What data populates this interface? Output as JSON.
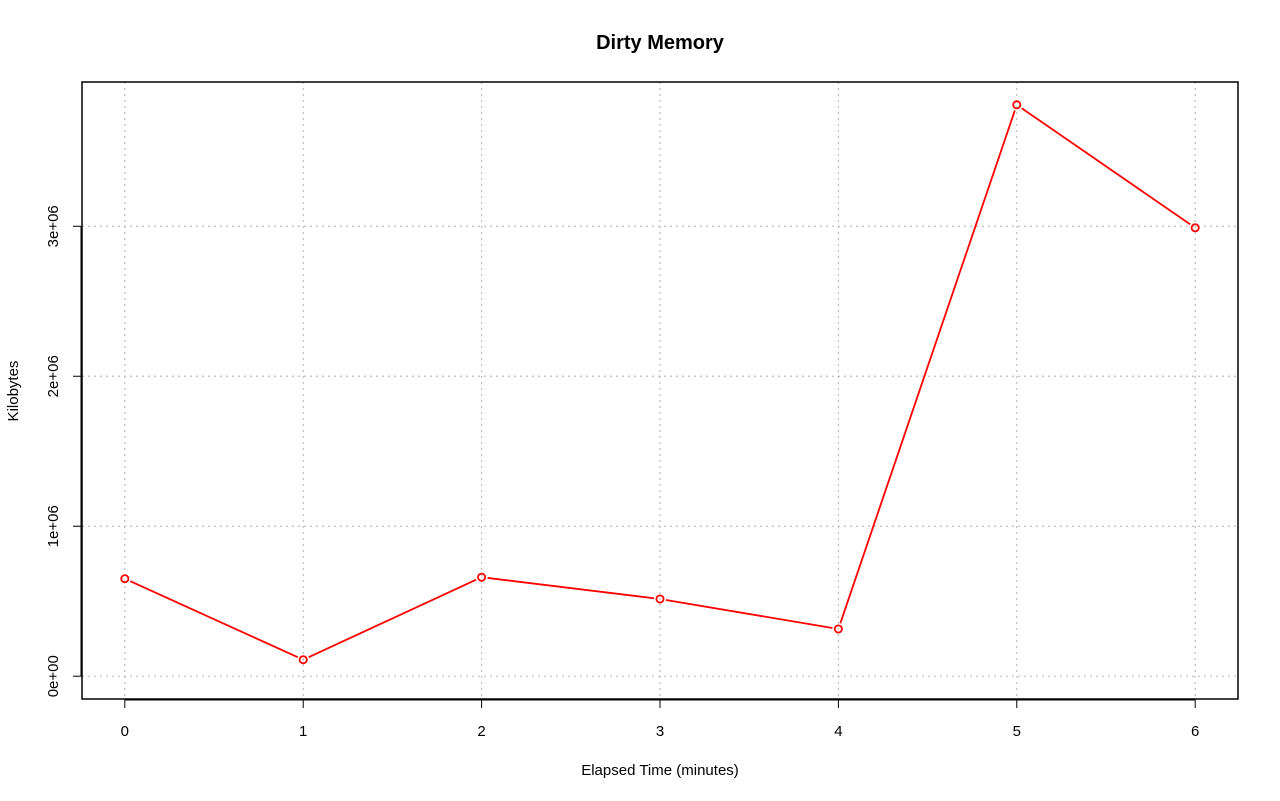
{
  "chart_data": {
    "type": "line",
    "title": "Dirty Memory",
    "xlabel": "Elapsed Time (minutes)",
    "ylabel": "Kilobytes",
    "x": [
      0,
      1,
      2,
      3,
      4,
      5,
      6
    ],
    "series": [
      {
        "values": [
          650000,
          110000,
          660000,
          515000,
          315000,
          3810000,
          2990000
        ],
        "color": "#ff0000",
        "marker": "open-circle"
      }
    ],
    "x_ticks": [
      0,
      1,
      2,
      3,
      4,
      5,
      6
    ],
    "x_tick_labels": [
      "0",
      "1",
      "2",
      "3",
      "4",
      "5",
      "6"
    ],
    "y_ticks": [
      0,
      1000000,
      2000000,
      3000000
    ],
    "y_tick_labels": [
      "0e+00",
      "1e+06",
      "2e+06",
      "3e+06"
    ],
    "xlim": [
      -0.24,
      6.24
    ],
    "ylim": [
      -152000,
      3962000
    ],
    "grid": true
  }
}
